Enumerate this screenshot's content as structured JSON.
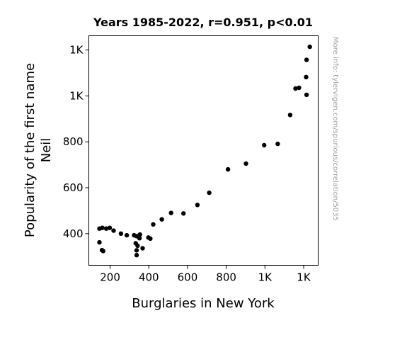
{
  "chart_data": {
    "type": "scatter",
    "title": "Years 1985-2022, r=0.951, p<0.01",
    "xlabel": "Burglaries in New York",
    "ylabel": [
      "Popularity of the first name",
      "Neil"
    ],
    "watermark": "More info: tylervigen.com/spurious/correlation/5035",
    "xlim": [
      90,
      1275
    ],
    "ylim": [
      262,
      1262
    ],
    "grid": false,
    "legend": "none",
    "point_color": "#000000",
    "x_ticks": [
      {
        "value": 200,
        "label": "200"
      },
      {
        "value": 400,
        "label": "400"
      },
      {
        "value": 600,
        "label": "600"
      },
      {
        "value": 800,
        "label": "800"
      },
      {
        "value": 1000,
        "label": "1K"
      },
      {
        "value": 1200,
        "label": "1K"
      }
    ],
    "y_ticks": [
      {
        "value": 400,
        "label": "400"
      },
      {
        "value": 600,
        "label": "600"
      },
      {
        "value": 800,
        "label": "800"
      },
      {
        "value": 1000,
        "label": "1K"
      },
      {
        "value": 1200,
        "label": "1K"
      }
    ],
    "points": [
      {
        "x": 145,
        "y": 422
      },
      {
        "x": 160,
        "y": 425
      },
      {
        "x": 180,
        "y": 422
      },
      {
        "x": 198,
        "y": 425
      },
      {
        "x": 218,
        "y": 413
      },
      {
        "x": 256,
        "y": 400
      },
      {
        "x": 286,
        "y": 393
      },
      {
        "x": 145,
        "y": 362
      },
      {
        "x": 158,
        "y": 328
      },
      {
        "x": 164,
        "y": 324
      },
      {
        "x": 324,
        "y": 393
      },
      {
        "x": 337,
        "y": 389
      },
      {
        "x": 332,
        "y": 358
      },
      {
        "x": 342,
        "y": 347
      },
      {
        "x": 337,
        "y": 327
      },
      {
        "x": 337,
        "y": 306
      },
      {
        "x": 352,
        "y": 380
      },
      {
        "x": 354,
        "y": 396
      },
      {
        "x": 368,
        "y": 336
      },
      {
        "x": 398,
        "y": 383
      },
      {
        "x": 408,
        "y": 378
      },
      {
        "x": 423,
        "y": 440
      },
      {
        "x": 467,
        "y": 462
      },
      {
        "x": 515,
        "y": 490
      },
      {
        "x": 579,
        "y": 488
      },
      {
        "x": 651,
        "y": 525
      },
      {
        "x": 712,
        "y": 578
      },
      {
        "x": 809,
        "y": 680
      },
      {
        "x": 902,
        "y": 705
      },
      {
        "x": 996,
        "y": 785
      },
      {
        "x": 1066,
        "y": 791
      },
      {
        "x": 1130,
        "y": 917
      },
      {
        "x": 1158,
        "y": 1032
      },
      {
        "x": 1176,
        "y": 1035
      },
      {
        "x": 1215,
        "y": 1005
      },
      {
        "x": 1213,
        "y": 1082
      },
      {
        "x": 1215,
        "y": 1157
      },
      {
        "x": 1232,
        "y": 1214
      }
    ]
  }
}
